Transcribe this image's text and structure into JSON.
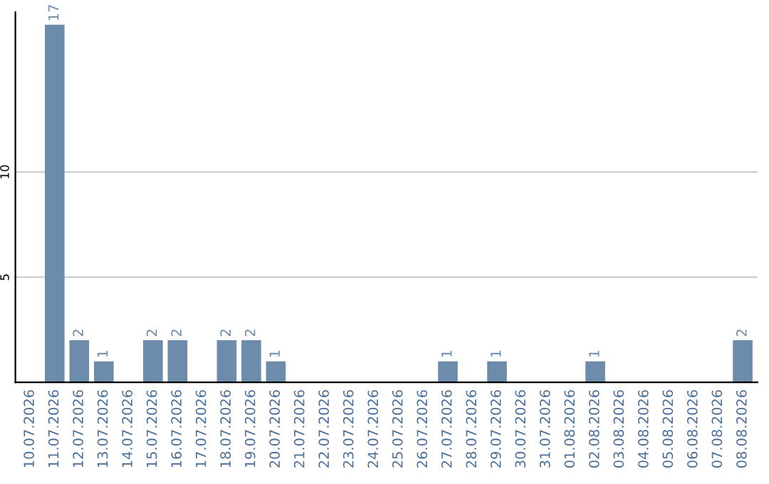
{
  "chart_data": {
    "type": "bar",
    "categories": [
      "10.07.2026",
      "11.07.2026",
      "12.07.2026",
      "13.07.2026",
      "14.07.2026",
      "15.07.2026",
      "16.07.2026",
      "17.07.2026",
      "18.07.2026",
      "19.07.2026",
      "20.07.2026",
      "21.07.2026",
      "22.07.2026",
      "23.07.2026",
      "24.07.2026",
      "25.07.2026",
      "26.07.2026",
      "27.07.2026",
      "28.07.2026",
      "29.07.2026",
      "30.07.2026",
      "31.07.2026",
      "01.08.2026",
      "02.08.2026",
      "03.08.2026",
      "04.08.2026",
      "05.08.2026",
      "06.08.2026",
      "07.08.2026",
      "08.08.2026"
    ],
    "values": [
      0,
      17,
      2,
      1,
      0,
      2,
      2,
      0,
      2,
      2,
      1,
      0,
      0,
      0,
      0,
      0,
      0,
      1,
      0,
      1,
      0,
      0,
      0,
      1,
      0,
      0,
      0,
      0,
      0,
      2
    ],
    "value_labels": [
      null,
      "17",
      "2",
      "1",
      null,
      "2",
      "2",
      null,
      "2",
      "2",
      "1",
      null,
      null,
      null,
      null,
      null,
      null,
      "1",
      null,
      "1",
      null,
      null,
      null,
      "1",
      null,
      null,
      null,
      null,
      null,
      "2"
    ],
    "color": "#6d8bab",
    "ylim": [
      0,
      17.6
    ],
    "yticks": [
      5,
      10
    ],
    "grid": "y"
  }
}
